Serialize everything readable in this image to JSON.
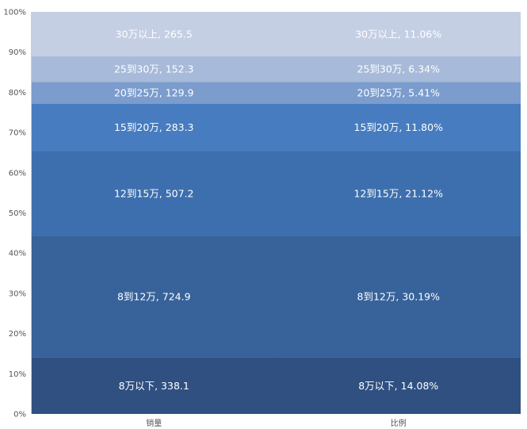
{
  "chart_data": {
    "type": "bar",
    "stacked": "percent",
    "categories": [
      "销量",
      "比例"
    ],
    "series": [
      {
        "name": "8万以下",
        "values": [
          338.1,
          14.08
        ],
        "labels": [
          "8万以下, 338.1",
          "8万以下, 14.08%"
        ],
        "color": "#2f5081"
      },
      {
        "name": "8到12万",
        "values": [
          724.9,
          30.19
        ],
        "labels": [
          "8到12万, 724.9",
          "8到12万, 30.19%"
        ],
        "color": "#37629a"
      },
      {
        "name": "12到15万",
        "values": [
          507.2,
          21.12
        ],
        "labels": [
          "12到15万, 507.2",
          "12到15万, 21.12%"
        ],
        "color": "#3d6fae"
      },
      {
        "name": "15到20万",
        "values": [
          283.3,
          11.8
        ],
        "labels": [
          "15到20万, 283.3",
          "15到20万, 11.80%"
        ],
        "color": "#477dc0"
      },
      {
        "name": "20到25万",
        "values": [
          129.9,
          5.41
        ],
        "labels": [
          "20到25万, 129.9",
          "20到25万, 5.41%"
        ],
        "color": "#7b9ccc"
      },
      {
        "name": "25到30万",
        "values": [
          152.3,
          6.34
        ],
        "labels": [
          "25到30万, 152.3",
          "25到30万, 6.34%"
        ],
        "color": "#a7bad9"
      },
      {
        "name": "30万以上",
        "values": [
          265.5,
          11.06
        ],
        "labels": [
          "30万以上, 265.5",
          "30万以上, 11.06%"
        ],
        "color": "#c4cfe4"
      }
    ],
    "yticks": [
      "0%",
      "10%",
      "20%",
      "30%",
      "40%",
      "50%",
      "60%",
      "70%",
      "80%",
      "90%",
      "100%"
    ],
    "ylim": [
      0,
      100
    ],
    "grid": false,
    "legend": "none"
  }
}
